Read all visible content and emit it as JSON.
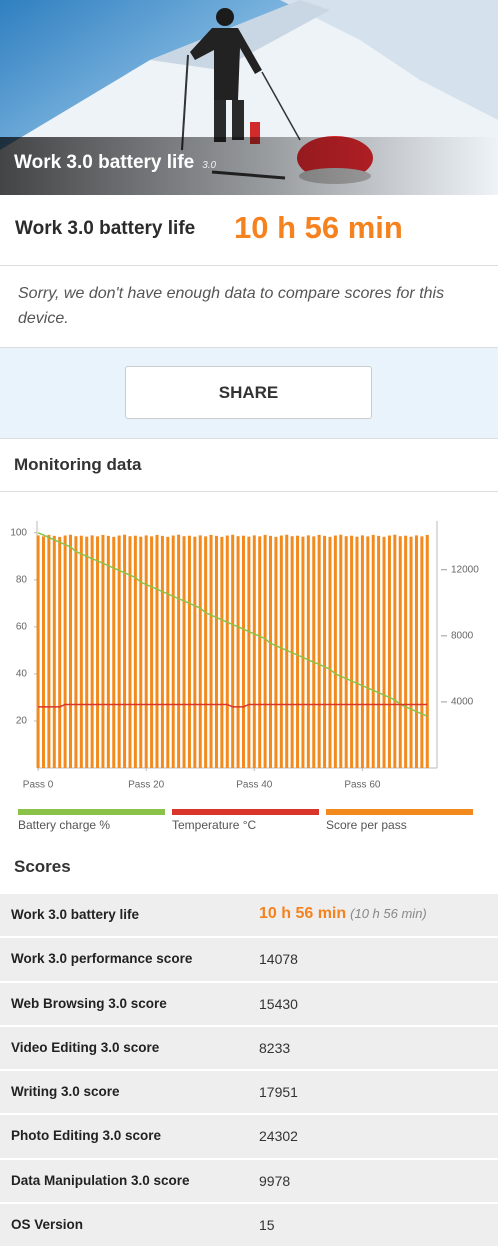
{
  "hero": {
    "title": "Work 3.0 battery life",
    "badge": "3.0"
  },
  "result": {
    "label": "Work 3.0 battery life",
    "value": "10 h 56 min"
  },
  "note": "Sorry, we don't have enough data to compare scores for this device.",
  "share": "SHARE",
  "monitoring": {
    "title": "Monitoring data"
  },
  "chart_data": {
    "type": "bar",
    "x": [
      0,
      1,
      2,
      3,
      4,
      5,
      6,
      7,
      8,
      9,
      10,
      11,
      12,
      13,
      14,
      15,
      16,
      17,
      18,
      19,
      20,
      21,
      22,
      23,
      24,
      25,
      26,
      27,
      28,
      29,
      30,
      31,
      32,
      33,
      34,
      35,
      36,
      37,
      38,
      39,
      40,
      41,
      42,
      43,
      44,
      45,
      46,
      47,
      48,
      49,
      50,
      51,
      52,
      53,
      54,
      55,
      56,
      57,
      58,
      59,
      60,
      61,
      62,
      63,
      64,
      65,
      66,
      67,
      68,
      69,
      70,
      71,
      72
    ],
    "xlim": [
      -0.2,
      73.8
    ],
    "xticks": [
      {
        "value": 0,
        "label": "Pass 0"
      },
      {
        "value": 20,
        "label": "Pass 20"
      },
      {
        "value": 40,
        "label": "Pass 40"
      },
      {
        "value": 60,
        "label": "Pass 60"
      }
    ],
    "ylim": [
      0,
      105
    ],
    "yticks": [
      20,
      40,
      60,
      80,
      100
    ],
    "y2lim": [
      0,
      14950
    ],
    "y2ticks": [
      4000,
      8000,
      12000
    ],
    "grid": false,
    "series": [
      {
        "name": "Battery charge %",
        "color": "#8bc34a",
        "type": "line",
        "values": [
          100,
          99,
          98,
          97,
          96,
          95,
          94,
          92,
          91,
          90,
          89,
          88,
          87,
          86,
          85,
          84,
          83,
          82,
          81,
          79,
          78,
          77,
          76,
          75,
          74,
          73,
          72,
          71,
          70,
          69,
          68,
          66,
          65,
          64,
          63,
          62,
          61,
          60,
          59,
          58,
          57,
          56,
          55,
          53,
          52,
          51,
          50,
          49,
          48,
          47,
          46,
          45,
          44,
          43,
          42,
          40,
          39,
          38,
          37,
          36,
          35,
          34,
          33,
          32,
          31,
          30,
          29,
          27,
          26,
          25,
          24,
          23,
          22
        ]
      },
      {
        "name": "Temperature °C",
        "color": "#d9352b",
        "type": "line",
        "values": [
          26,
          26,
          26,
          26,
          26,
          27,
          27,
          27,
          27,
          27,
          27,
          27,
          27,
          27,
          27,
          27,
          27,
          27,
          27,
          27,
          27,
          27,
          27,
          27,
          27,
          27,
          27,
          27,
          27,
          27,
          27,
          27,
          27,
          27,
          27,
          27,
          26,
          26,
          26,
          27,
          27,
          27,
          27,
          27,
          27,
          27,
          27,
          27,
          27,
          27,
          27,
          27,
          27,
          27,
          27,
          27,
          27,
          27,
          27,
          27,
          27,
          27,
          27,
          27,
          27,
          27,
          27,
          27,
          27,
          27,
          27,
          27,
          27
        ]
      },
      {
        "name": "Score per pass",
        "color": "#f28a1e",
        "type": "bar",
        "axis": "y2",
        "values": [
          14080,
          14020,
          14110,
          14050,
          13990,
          14070,
          14120,
          14030,
          14060,
          14000,
          14080,
          14020,
          14110,
          14050,
          13990,
          14070,
          14120,
          14030,
          14060,
          14000,
          14080,
          14020,
          14110,
          14050,
          13990,
          14070,
          14120,
          14030,
          14060,
          14000,
          14080,
          14020,
          14110,
          14050,
          13990,
          14070,
          14120,
          14030,
          14060,
          14000,
          14080,
          14020,
          14110,
          14050,
          13990,
          14070,
          14120,
          14030,
          14060,
          14000,
          14080,
          14020,
          14110,
          14050,
          13990,
          14070,
          14120,
          14030,
          14060,
          14000,
          14080,
          14020,
          14110,
          14050,
          13990,
          14070,
          14120,
          14030,
          14060,
          14000,
          14080,
          14020,
          14110
        ]
      }
    ]
  },
  "scores": {
    "title": "Scores",
    "rows": [
      [
        "Work 3.0 battery life",
        "10 h 56 min",
        "(10 h 56 min)"
      ],
      [
        "Work 3.0 performance score",
        "14078"
      ],
      [
        "Web Browsing 3.0 score",
        "15430"
      ],
      [
        "Video Editing 3.0 score",
        "8233"
      ],
      [
        "Writing 3.0 score",
        "17951"
      ],
      [
        "Photo Editing 3.0 score",
        "24302"
      ],
      [
        "Data Manipulation 3.0 score",
        "9978"
      ],
      [
        "OS Version",
        "15"
      ]
    ]
  }
}
